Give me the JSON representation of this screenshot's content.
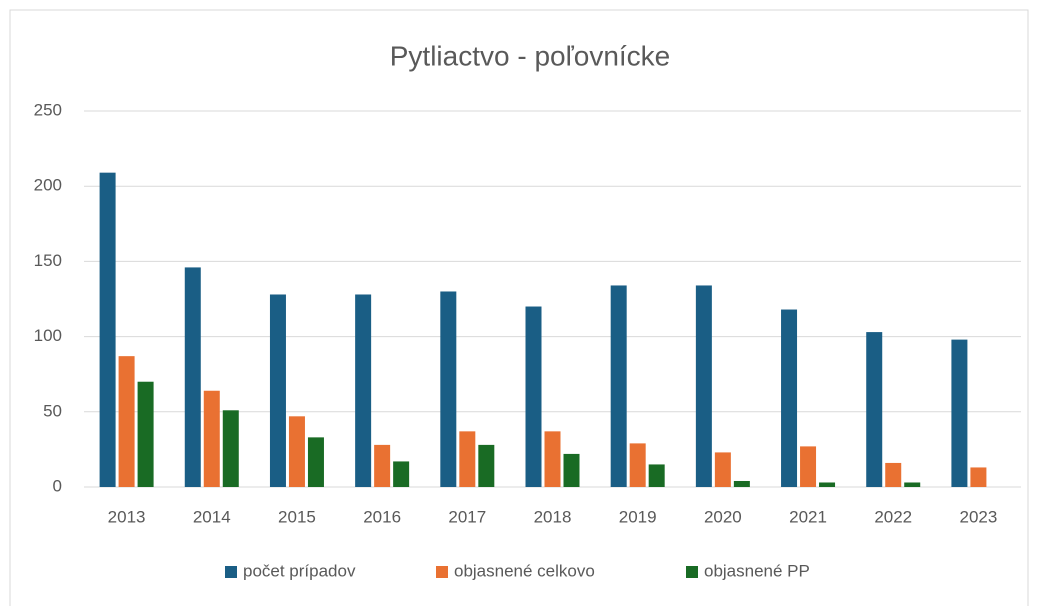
{
  "chart_data": {
    "type": "bar",
    "title": "Pytliactvo - poľovnícke",
    "categories": [
      "2013",
      "2014",
      "2015",
      "2016",
      "2017",
      "2018",
      "2019",
      "2020",
      "2021",
      "2022",
      "2023"
    ],
    "series": [
      {
        "name": "počet prípadov",
        "color": "#1a5e85",
        "values": [
          209,
          146,
          128,
          128,
          130,
          120,
          134,
          134,
          118,
          103,
          98
        ]
      },
      {
        "name": "objasnené celkovo",
        "color": "#e97132",
        "values": [
          87,
          64,
          47,
          28,
          37,
          37,
          29,
          23,
          27,
          16,
          13
        ]
      },
      {
        "name": "objasnené PP",
        "color": "#196b24",
        "values": [
          70,
          51,
          33,
          17,
          28,
          22,
          15,
          4,
          3,
          3,
          0
        ]
      }
    ],
    "ylim": [
      0,
      250
    ],
    "yticks": [
      0,
      50,
      100,
      150,
      200,
      250
    ],
    "grid": true,
    "legend": "bottom"
  }
}
